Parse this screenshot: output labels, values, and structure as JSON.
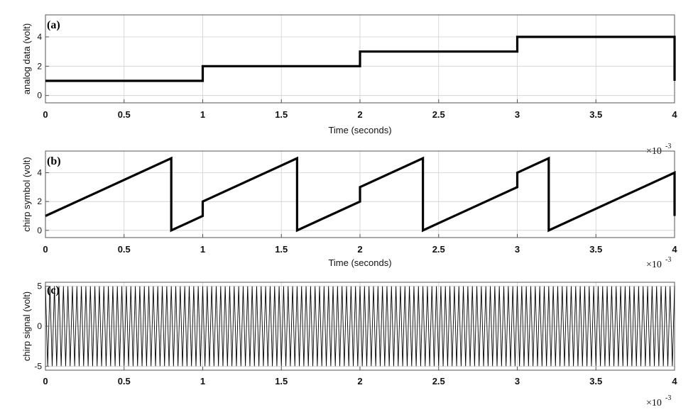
{
  "chart_data": [
    {
      "type": "line",
      "panel_label": "(a)",
      "xlabel": "Time (seconds)",
      "ylabel": "analog data (volt)",
      "x_multiplier": "×10",
      "x_multiplier_exp": "-3",
      "xlim": [
        0,
        4
      ],
      "ylim": [
        -0.5,
        5.5
      ],
      "xticks": [
        0,
        0.5,
        1,
        1.5,
        2,
        2.5,
        3,
        3.5,
        4
      ],
      "xtick_labels": [
        "0",
        "0.5",
        "1",
        "1.5",
        "2",
        "2.5",
        "3",
        "3.5",
        "4"
      ],
      "yticks": [
        0,
        2,
        4
      ],
      "ytick_labels": [
        "0",
        "2",
        "4"
      ],
      "grid": true,
      "series": [
        {
          "x": [
            0,
            1,
            1,
            2,
            2,
            3,
            3,
            4,
            4
          ],
          "y": [
            1,
            1,
            2,
            2,
            3,
            3,
            4,
            4,
            1
          ]
        }
      ]
    },
    {
      "type": "line",
      "panel_label": "(b)",
      "xlabel": "Time (seconds)",
      "ylabel": "chirp symbol (volt)",
      "x_multiplier": "×10",
      "x_multiplier_exp": "-3",
      "xlim": [
        0,
        4
      ],
      "ylim": [
        -0.5,
        5.5
      ],
      "xticks": [
        0,
        0.5,
        1,
        1.5,
        2,
        2.5,
        3,
        3.5,
        4
      ],
      "xtick_labels": [
        "0",
        "0.5",
        "1",
        "1.5",
        "2",
        "2.5",
        "3",
        "3.5",
        "4"
      ],
      "yticks": [
        0,
        2,
        4
      ],
      "ytick_labels": [
        "0",
        "2",
        "4"
      ],
      "grid": true,
      "series": [
        {
          "x": [
            0,
            0.8,
            0.8,
            1,
            1,
            1.6,
            1.6,
            2,
            2,
            2.4,
            2.4,
            3,
            3,
            3.2,
            3.2,
            4,
            4
          ],
          "y": [
            1,
            5,
            0,
            1,
            2,
            5,
            0,
            2,
            3,
            5,
            0,
            3,
            4,
            5,
            0,
            4,
            1
          ]
        }
      ]
    },
    {
      "type": "line",
      "panel_label": "(c)",
      "xlabel": "",
      "ylabel": "chirp signal (volt)",
      "x_multiplier": "×10",
      "x_multiplier_exp": "-3",
      "xlim": [
        0,
        4
      ],
      "ylim": [
        -5.5,
        5.5
      ],
      "xticks": [
        0,
        0.5,
        1,
        1.5,
        2,
        2.5,
        3,
        3.5,
        4
      ],
      "xtick_labels": [
        "0",
        "0.5",
        "1",
        "1.5",
        "2",
        "2.5",
        "3",
        "3.5",
        "4"
      ],
      "yticks": [
        -5,
        0,
        5
      ],
      "ytick_labels": [
        "-5",
        "0",
        "5"
      ],
      "grid": true,
      "amplitude": 5,
      "cycles": 140
    }
  ]
}
